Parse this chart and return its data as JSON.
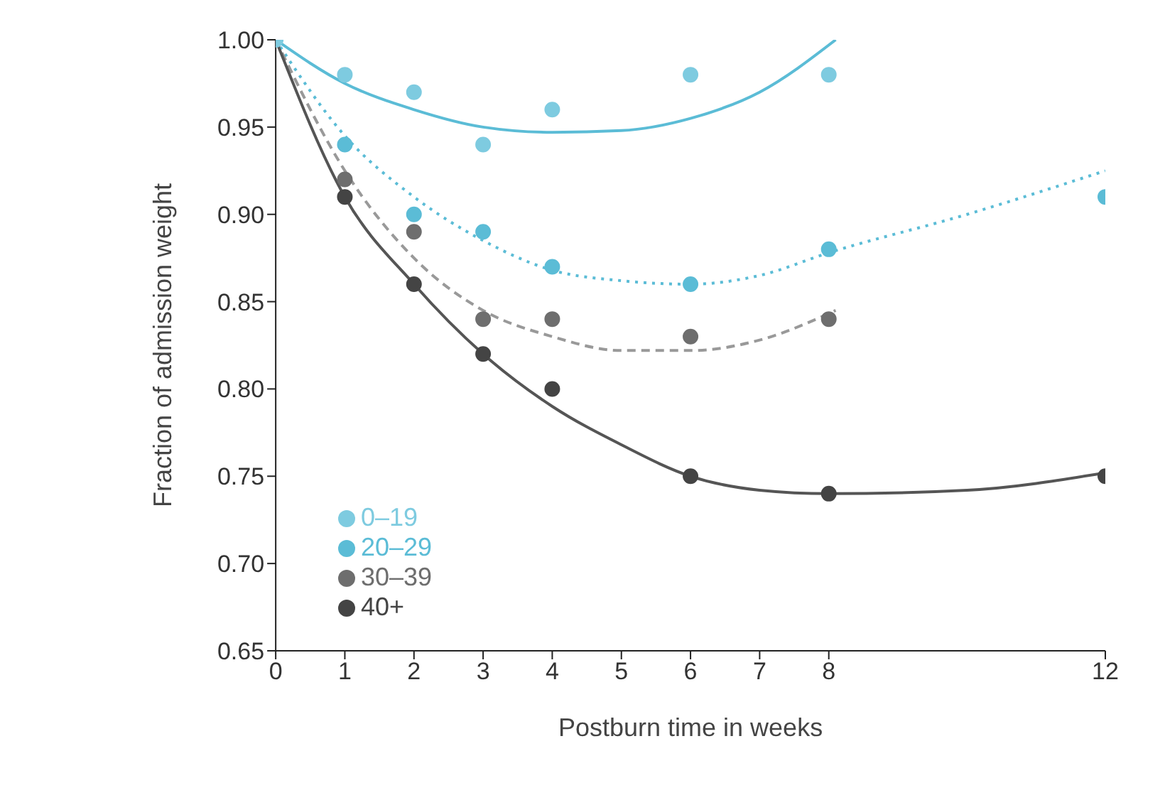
{
  "chart_data": {
    "type": "scatter",
    "xlabel": "Postburn time in weeks",
    "ylabel": "Fraction of admission weight",
    "xlim": [
      0,
      12
    ],
    "xticks": [
      0,
      1,
      2,
      3,
      4,
      5,
      6,
      7,
      8,
      12
    ],
    "ylim": [
      0.65,
      1.0
    ],
    "yticks": [
      {
        "value": 0.65,
        "label": "0.65"
      },
      {
        "value": 0.7,
        "label": "0.70"
      },
      {
        "value": 0.75,
        "label": "0.75"
      },
      {
        "value": 0.8,
        "label": "0.80"
      },
      {
        "value": 0.85,
        "label": "0.85"
      },
      {
        "value": 0.9,
        "label": "0.90"
      },
      {
        "value": 0.95,
        "label": "0.95"
      },
      {
        "value": 1.0,
        "label": "1.00"
      }
    ],
    "grid": false,
    "legend": "bottom left",
    "marker": "circle",
    "series": [
      {
        "type": "line",
        "color": "#5bbcd6",
        "line_style": "solid",
        "marker": "none",
        "x": [
          0,
          1,
          2,
          3,
          4,
          5,
          6,
          7,
          8.1
        ],
        "values": [
          1.0,
          0.975,
          0.96,
          0.95,
          0.947,
          0.948,
          0.955,
          0.97,
          1.0
        ]
      },
      {
        "type": "line",
        "color": "#5bbcd6",
        "line_style": "dotted",
        "marker": "none",
        "x": [
          0,
          1,
          2,
          3,
          4,
          5,
          6,
          7,
          8,
          10,
          12
        ],
        "values": [
          1.0,
          0.945,
          0.91,
          0.885,
          0.868,
          0.862,
          0.86,
          0.865,
          0.878,
          0.9,
          0.925
        ]
      },
      {
        "type": "line",
        "color": "#999999",
        "line_style": "dashed",
        "marker": "none",
        "x": [
          0,
          1,
          2,
          3,
          4,
          5,
          6,
          7,
          8.1
        ],
        "values": [
          1.0,
          0.925,
          0.875,
          0.845,
          0.83,
          0.822,
          0.822,
          0.828,
          0.845
        ]
      },
      {
        "type": "line",
        "color": "#555555",
        "line_style": "solid",
        "marker": "none",
        "x": [
          0,
          1,
          2,
          3,
          4,
          5,
          6,
          7,
          8,
          10,
          12
        ],
        "values": [
          1.0,
          0.91,
          0.86,
          0.82,
          0.79,
          0.768,
          0.75,
          0.742,
          0.74,
          0.742,
          0.752
        ]
      },
      {
        "name": "0–19",
        "color": "#7ecbe0",
        "x": [
          0,
          1,
          2,
          3,
          4,
          6,
          8
        ],
        "values": [
          1.0,
          0.98,
          0.97,
          0.94,
          0.96,
          0.98,
          0.98
        ]
      },
      {
        "name": "20–29",
        "color": "#5bbcd6",
        "x": [
          1,
          2,
          3,
          4,
          6,
          8,
          12
        ],
        "values": [
          0.94,
          0.9,
          0.89,
          0.87,
          0.86,
          0.88,
          0.91
        ]
      },
      {
        "name": "30–39",
        "color": "#6e6e6e",
        "x": [
          1,
          2,
          3,
          4,
          6,
          8
        ],
        "values": [
          0.92,
          0.89,
          0.84,
          0.84,
          0.83,
          0.84
        ]
      },
      {
        "name": "40+",
        "color": "#444444",
        "x": [
          1,
          2,
          3,
          4,
          6,
          8,
          12
        ],
        "values": [
          0.91,
          0.86,
          0.82,
          0.8,
          0.75,
          0.74,
          0.75
        ]
      }
    ]
  }
}
